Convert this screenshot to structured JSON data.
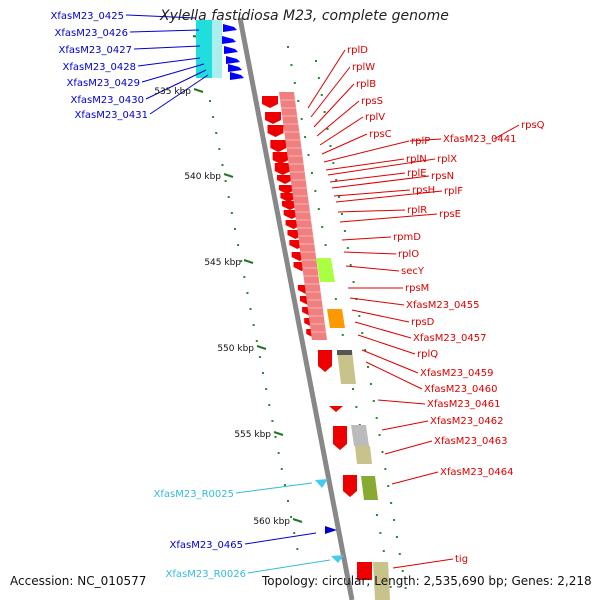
{
  "title": "Xylella fastidiosa M23, complete genome",
  "footer": {
    "accession": "Accession: NC_010577",
    "summary": "Topology: circular; Length: 2,535,690 bp; Genes: 2,218"
  },
  "colors": {
    "left_gene_label": "#0000cc",
    "right_gene_label": "#dd0000",
    "rna_label": "#33bbdd",
    "backbone": "#888888",
    "tick": "#227722",
    "ribosomal_block": "#f08080",
    "secY_block": "#aaff44",
    "orange_block": "#ff9900",
    "khaki_block": "#c8c38a",
    "olive_block": "#88aa33",
    "gray_block": "#bbbbbb"
  },
  "scale_labels": [
    "535 kbp",
    "540 kbp",
    "545 kbp",
    "550 kbp",
    "555 kbp",
    "560 kbp"
  ],
  "left_labels": [
    "XfasM23_0425",
    "XfasM23_0426",
    "XfasM23_0427",
    "XfasM23_0428",
    "XfasM23_0429",
    "XfasM23_0430",
    "XfasM23_0431",
    "XfasM23_0465"
  ],
  "rna_labels": [
    "XfasM23_R0025",
    "XfasM23_R0026"
  ],
  "right_labels": [
    "rplD",
    "rplW",
    "rplB",
    "rpsS",
    "rplV",
    "rpsC",
    "rplP",
    "XfasM23_0441",
    "rpsQ",
    "rplN",
    "rplX",
    "rplE",
    "rpsN",
    "rpsH",
    "rplF",
    "rplR",
    "rpsE",
    "rpmD",
    "rplO",
    "secY",
    "rpsM",
    "XfasM23_0455",
    "rpsD",
    "XfasM23_0457",
    "rplQ",
    "XfasM23_0459",
    "XfasM23_0460",
    "XfasM23_0461",
    "XfasM23_0462",
    "XfasM23_0463",
    "XfasM23_0464",
    "tig"
  ]
}
